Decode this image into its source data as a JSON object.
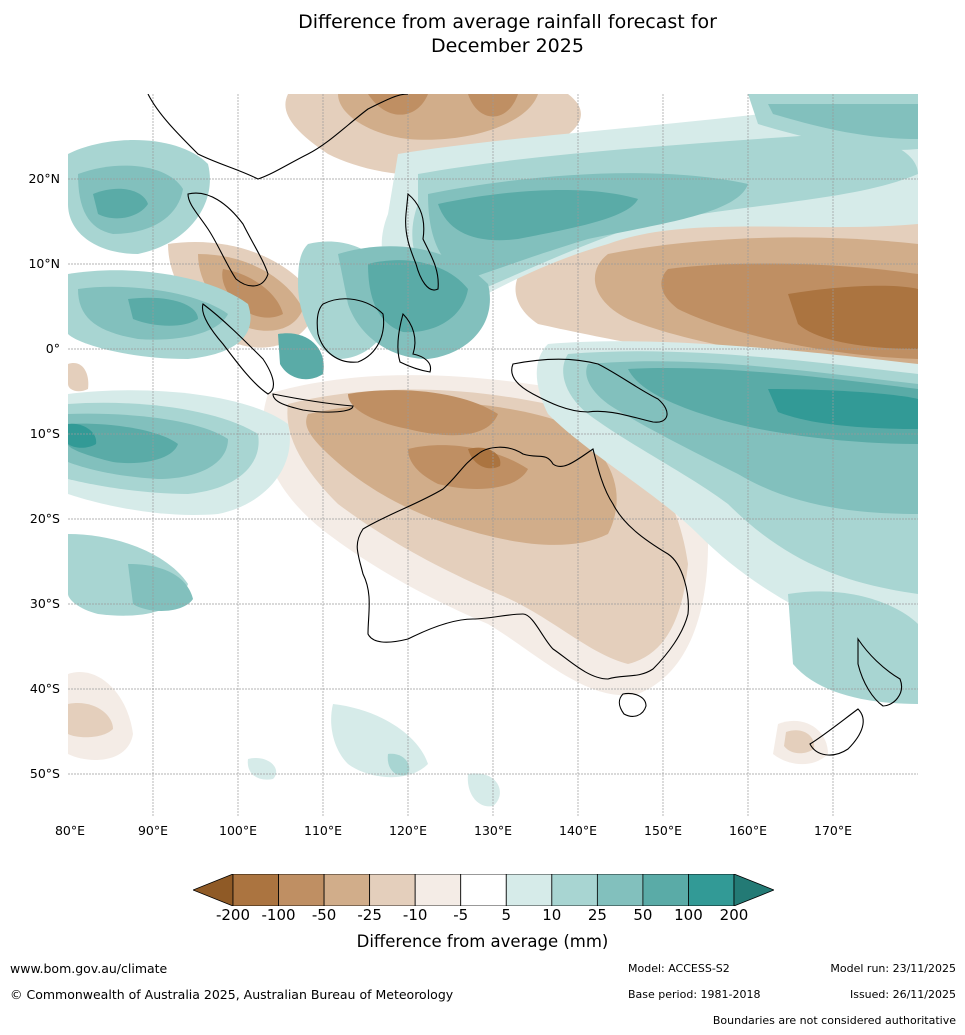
{
  "title": {
    "line1": "Difference from average rainfall forecast for",
    "line2": "December 2025"
  },
  "map": {
    "latitude_labels": [
      "20°N",
      "10°N",
      "0°",
      "10°S",
      "20°S",
      "30°S",
      "40°S",
      "50°S"
    ],
    "longitude_labels": [
      "80°E",
      "90°E",
      "100°E",
      "110°E",
      "120°E",
      "130°E",
      "140°E",
      "150°E",
      "160°E",
      "170°E"
    ],
    "extent": {
      "lon": [
        80,
        180
      ],
      "lat": [
        -55,
        30
      ]
    }
  },
  "colorbar": {
    "title": "Difference from average (mm)",
    "tick_labels": [
      "-200",
      "-100",
      "-50",
      "-25",
      "-10",
      "-5",
      "5",
      "10",
      "25",
      "50",
      "100",
      "200"
    ],
    "colors": [
      "#8f5a26",
      "#ab7440",
      "#bf8f63",
      "#d1ad8a",
      "#e4cfbc",
      "#f4ece6",
      "#ffffff",
      "#d6ebe9",
      "#a8d5d2",
      "#82c0bd",
      "#5aaba7",
      "#329a96",
      "#237a75"
    ]
  },
  "footer": {
    "url": "www.bom.gov.au/climate",
    "copyright": "© Commonwealth of Australia 2025, Australian Bureau of Meteorology",
    "model": "Model: ACCESS-S2",
    "base_period": "Base period: 1981-2018",
    "model_run": "Model run: 23/11/2025",
    "issued": "Issued: 26/11/2025",
    "disclaimer": "Boundaries are not considered authoritative"
  }
}
